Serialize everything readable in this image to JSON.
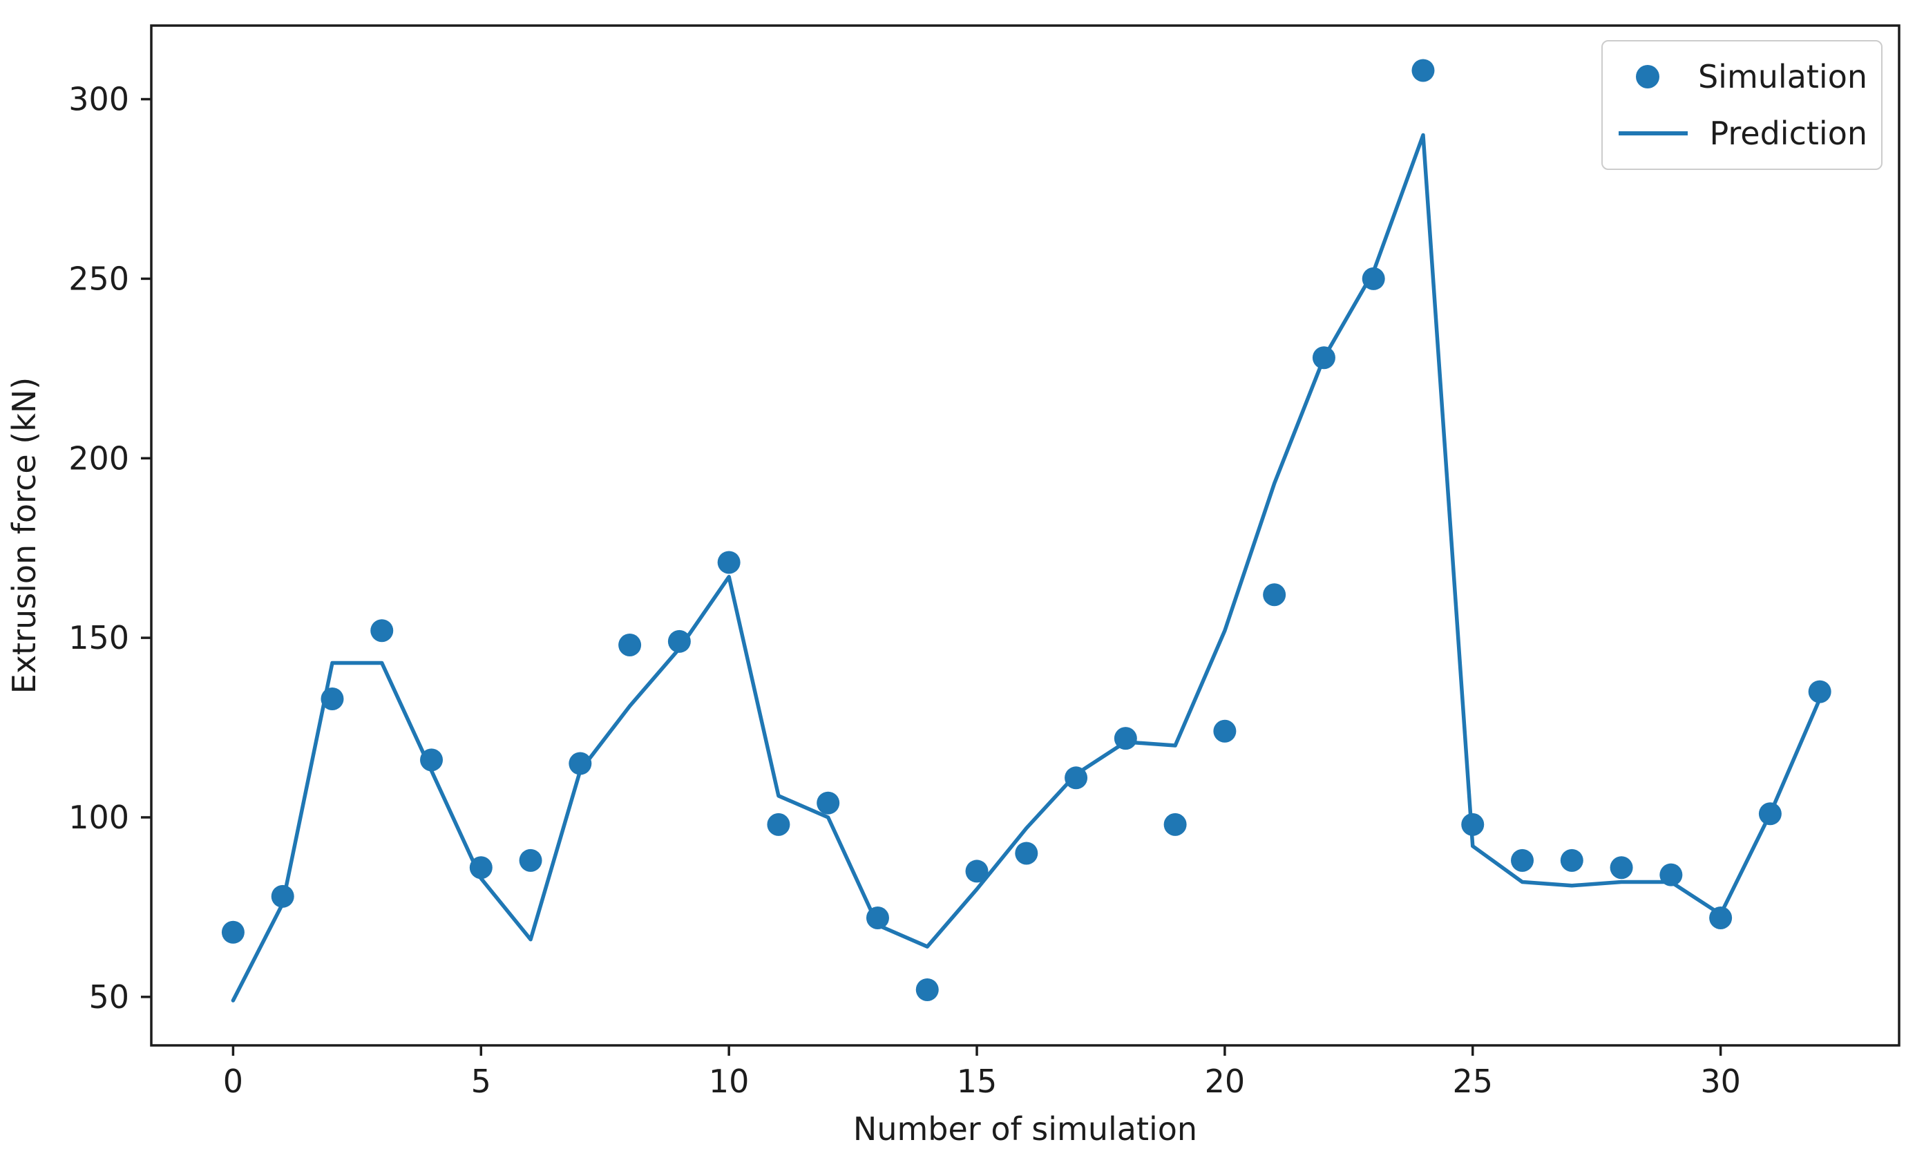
{
  "chart_data": {
    "type": "scatter",
    "title": "",
    "xlabel": "Number of simulation",
    "ylabel": "Extrusion force (kN)",
    "x": [
      0,
      1,
      2,
      3,
      4,
      5,
      6,
      7,
      8,
      9,
      10,
      11,
      12,
      13,
      14,
      15,
      16,
      17,
      18,
      19,
      20,
      21,
      22,
      23,
      24,
      25,
      26,
      27,
      28,
      29,
      30,
      31,
      32
    ],
    "series": [
      {
        "name": "Simulation",
        "type": "scatter",
        "values": [
          68,
          78,
          133,
          152,
          116,
          86,
          88,
          115,
          148,
          149,
          171,
          98,
          104,
          72,
          52,
          85,
          90,
          111,
          122,
          98,
          124,
          162,
          228,
          250,
          308,
          98,
          88,
          88,
          86,
          84,
          72,
          101,
          135
        ]
      },
      {
        "name": "Prediction",
        "type": "line",
        "values": [
          49,
          76,
          143,
          143,
          113,
          83,
          66,
          113,
          131,
          147,
          167,
          106,
          100,
          70,
          64,
          80,
          97,
          112,
          121,
          120,
          152,
          193,
          228,
          252,
          290,
          92,
          82,
          81,
          82,
          82,
          73,
          101,
          133
        ]
      }
    ],
    "x_ticks": [
      0,
      5,
      10,
      15,
      20,
      25,
      30
    ],
    "y_ticks": [
      50,
      100,
      150,
      200,
      250,
      300
    ],
    "xlim": [
      -1.65,
      33.6
    ],
    "ylim": [
      36.5,
      320.5
    ],
    "grid": false,
    "legend_position": "upper right",
    "colors": {
      "simulation": "#1f77b4",
      "prediction": "#1f77b4",
      "spine": "#1c1c1c",
      "tick_label": "#1c1c1c"
    }
  }
}
